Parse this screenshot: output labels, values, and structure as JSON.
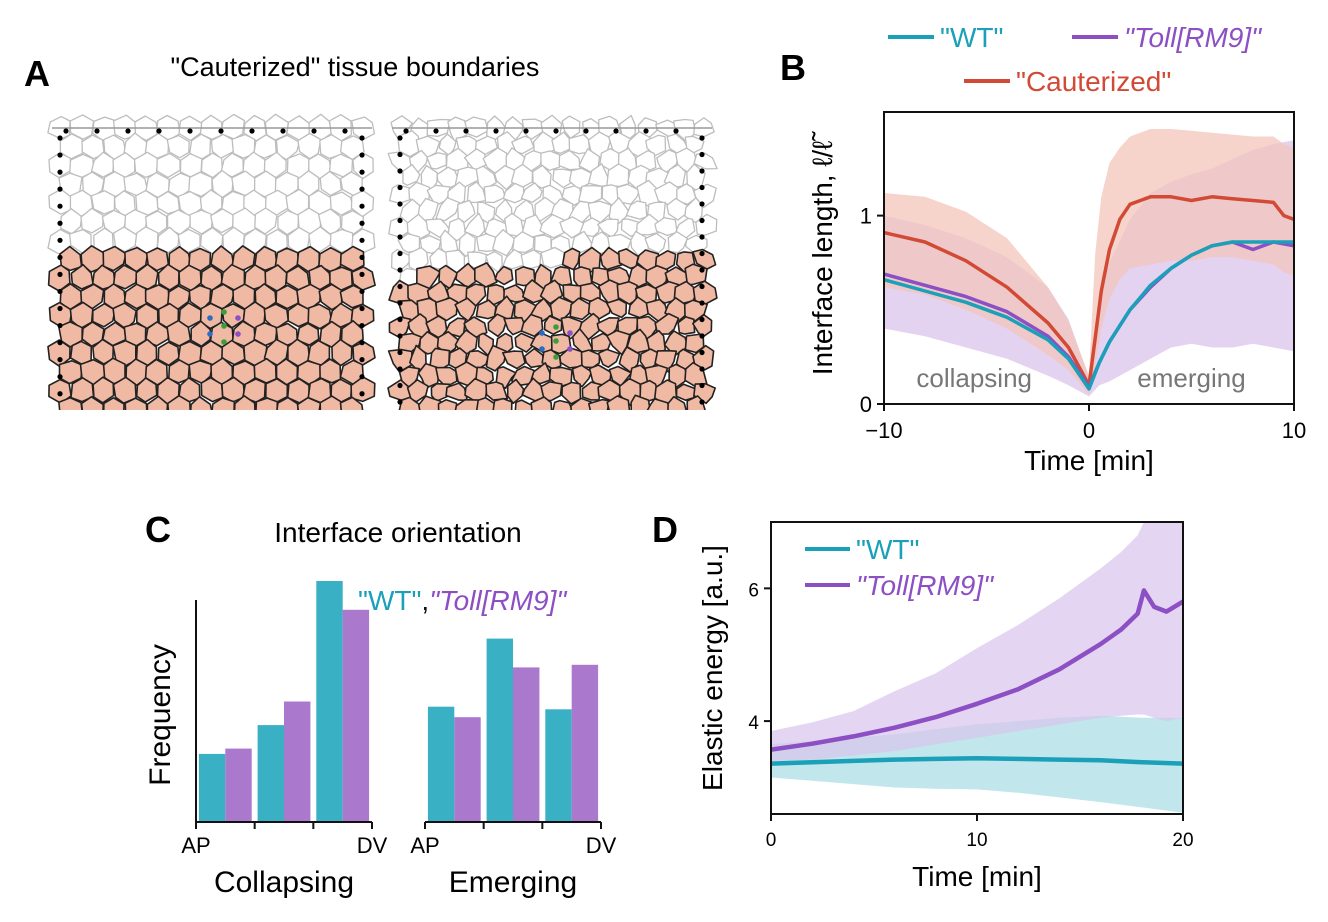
{
  "colors": {
    "wt": "#1aa0b8",
    "toll": "#8c4fc4",
    "caut": "#d24a35",
    "tissue": "#f0b9a4",
    "band_wt": "#a7dbe3",
    "band_toll": "#d9c4ec",
    "band_caut": "#f3c5bb"
  },
  "panels": {
    "a": {
      "letter": "A",
      "title": "\"Cauterized\" tissue boundaries"
    },
    "b": {
      "letter": "B"
    },
    "c": {
      "letter": "C",
      "title": "Interface orientation",
      "legend_wt": "\"WT\"",
      "legend_comma": ",",
      "legend_toll": "\"Toll[RM9]\""
    },
    "d": {
      "letter": "D"
    }
  },
  "chart_data": [
    {
      "type": "line",
      "panel": "B",
      "xlabel": "Time [min]",
      "ylabel": "Interface length, ℓ/ℓ̃",
      "xlim": [
        -10,
        10
      ],
      "ylim": [
        0,
        1.55
      ],
      "xticks": [
        {
          "v": -10,
          "label": "−10"
        },
        {
          "v": 0,
          "label": "0"
        },
        {
          "v": 10,
          "label": "10"
        }
      ],
      "yticks": [
        {
          "v": 0,
          "label": "0"
        },
        {
          "v": 1,
          "label": "1"
        }
      ],
      "annotations": [
        {
          "text": "collapsing",
          "x": -5.6,
          "y": 0.09
        },
        {
          "text": "emerging",
          "x": 5,
          "y": 0.09
        }
      ],
      "legend": [
        "\"WT\"",
        "\"Toll[RM9]\"",
        "\"Cauterized\""
      ],
      "series": [
        {
          "name": "\"WT\"",
          "color": "#1aa0b8",
          "x": [
            -10,
            -8,
            -6,
            -4,
            -2,
            -1,
            0,
            0.5,
            1,
            2,
            3,
            4,
            5,
            6,
            7,
            8,
            9,
            10
          ],
          "y": [
            0.66,
            0.6,
            0.54,
            0.46,
            0.34,
            0.24,
            0.08,
            0.22,
            0.33,
            0.5,
            0.63,
            0.72,
            0.79,
            0.84,
            0.86,
            0.86,
            0.86,
            0.86
          ]
        },
        {
          "name": "\"Toll[RM9]\"",
          "color": "#8c4fc4",
          "x": [
            -10,
            -8,
            -6,
            -4,
            -2,
            -1,
            0,
            0.5,
            1,
            2,
            3,
            4,
            5,
            6,
            7,
            8,
            9,
            10
          ],
          "y": [
            0.69,
            0.63,
            0.57,
            0.49,
            0.36,
            0.25,
            0.09,
            0.22,
            0.33,
            0.5,
            0.62,
            0.72,
            0.79,
            0.84,
            0.86,
            0.82,
            0.86,
            0.84
          ],
          "band_lo": [
            0.4,
            0.36,
            0.3,
            0.24,
            0.15,
            0.1,
            0.04,
            0.1,
            0.12,
            0.18,
            0.24,
            0.3,
            0.32,
            0.3,
            0.3,
            0.32,
            0.3,
            0.28
          ],
          "band_hi": [
            1.0,
            0.95,
            0.88,
            0.78,
            0.62,
            0.45,
            0.14,
            0.55,
            0.75,
            0.98,
            1.12,
            1.18,
            1.22,
            1.25,
            1.3,
            1.35,
            1.38,
            1.4
          ]
        },
        {
          "name": "\"Cauterized\"",
          "color": "#d24a35",
          "x": [
            -10,
            -8,
            -6,
            -4,
            -2,
            -1,
            0,
            0.3,
            0.6,
            1,
            1.5,
            2,
            3,
            4,
            5,
            6,
            7,
            8,
            9,
            9.5,
            10
          ],
          "y": [
            0.91,
            0.86,
            0.76,
            0.62,
            0.43,
            0.3,
            0.1,
            0.35,
            0.6,
            0.82,
            0.98,
            1.06,
            1.1,
            1.1,
            1.08,
            1.1,
            1.09,
            1.08,
            1.07,
            1.0,
            0.98
          ],
          "band_lo": [
            0.62,
            0.58,
            0.5,
            0.4,
            0.26,
            0.18,
            0.05,
            0.2,
            0.4,
            0.56,
            0.66,
            0.72,
            0.74,
            0.76,
            0.76,
            0.78,
            0.78,
            0.76,
            0.74,
            0.7,
            0.68
          ],
          "band_hi": [
            1.12,
            1.1,
            1.02,
            0.88,
            0.62,
            0.44,
            0.15,
            0.8,
            1.1,
            1.28,
            1.36,
            1.42,
            1.46,
            1.46,
            1.45,
            1.44,
            1.43,
            1.42,
            1.42,
            1.38,
            1.36
          ]
        }
      ]
    },
    {
      "type": "bar",
      "panel": "C-collapsing",
      "xlabel": "Collapsing",
      "ylabel": "Frequency",
      "tick_labels": [
        "AP",
        "DV"
      ],
      "categories": [
        "1",
        "2",
        "3"
      ],
      "series": [
        {
          "name": "\"WT\"",
          "color": "#3ab0c4",
          "values": [
            0.26,
            0.37,
            0.92
          ]
        },
        {
          "name": "\"Toll[RM9]\"",
          "color": "#aa78cc",
          "values": [
            0.28,
            0.46,
            0.81
          ]
        }
      ],
      "ylim": [
        0,
        1.0
      ]
    },
    {
      "type": "bar",
      "panel": "C-emerging",
      "xlabel": "Emerging",
      "tick_labels": [
        "AP",
        "DV"
      ],
      "categories": [
        "1",
        "2",
        "3"
      ],
      "series": [
        {
          "name": "\"WT\"",
          "color": "#3ab0c4",
          "values": [
            0.44,
            0.7,
            0.43
          ]
        },
        {
          "name": "\"Toll[RM9]\"",
          "color": "#aa78cc",
          "values": [
            0.4,
            0.59,
            0.6
          ]
        }
      ],
      "ylim": [
        0,
        1.0
      ]
    },
    {
      "type": "line",
      "panel": "D",
      "xlabel": "Time [min]",
      "ylabel": "Elastic energy [a.u.]",
      "xlim": [
        0,
        20
      ],
      "ylim": [
        2.6,
        7.0
      ],
      "xticks": [
        {
          "v": 0,
          "label": "0"
        },
        {
          "v": 10,
          "label": "10"
        },
        {
          "v": 20,
          "label": "20"
        }
      ],
      "yticks": [
        {
          "v": 4,
          "label": "4"
        },
        {
          "v": 6,
          "label": "6"
        }
      ],
      "legend": [
        "\"WT\"",
        "\"Toll[RM9]\""
      ],
      "series": [
        {
          "name": "\"WT\"",
          "color": "#1aa0b8",
          "x": [
            0,
            2,
            4,
            6,
            8,
            10,
            12,
            14,
            16,
            18,
            20
          ],
          "y": [
            3.36,
            3.38,
            3.4,
            3.42,
            3.43,
            3.44,
            3.43,
            3.42,
            3.41,
            3.38,
            3.36
          ],
          "band_lo": [
            3.15,
            3.1,
            3.05,
            3.0,
            2.98,
            2.97,
            2.92,
            2.85,
            2.78,
            2.7,
            2.62
          ],
          "band_hi": [
            3.65,
            3.7,
            3.75,
            3.8,
            3.88,
            3.95,
            4.0,
            4.05,
            4.08,
            4.05,
            4.05
          ]
        },
        {
          "name": "\"Toll[RM9]\"",
          "color": "#8c4fc4",
          "x": [
            0,
            2,
            4,
            6,
            8,
            10,
            12,
            14,
            16,
            17,
            17.8,
            18.1,
            18.6,
            19.2,
            20
          ],
          "y": [
            3.57,
            3.66,
            3.77,
            3.9,
            4.06,
            4.26,
            4.48,
            4.78,
            5.16,
            5.38,
            5.62,
            5.97,
            5.72,
            5.65,
            5.8
          ],
          "band_lo": [
            3.4,
            3.42,
            3.48,
            3.55,
            3.65,
            3.75,
            3.85,
            3.95,
            4.05,
            4.08,
            4.1,
            4.1,
            4.05,
            4.0,
            4.05
          ],
          "band_hi": [
            3.85,
            3.98,
            4.15,
            4.45,
            4.72,
            5.1,
            5.45,
            5.85,
            6.3,
            6.55,
            6.8,
            7.0,
            7.0,
            7.0,
            7.0
          ]
        }
      ]
    }
  ]
}
